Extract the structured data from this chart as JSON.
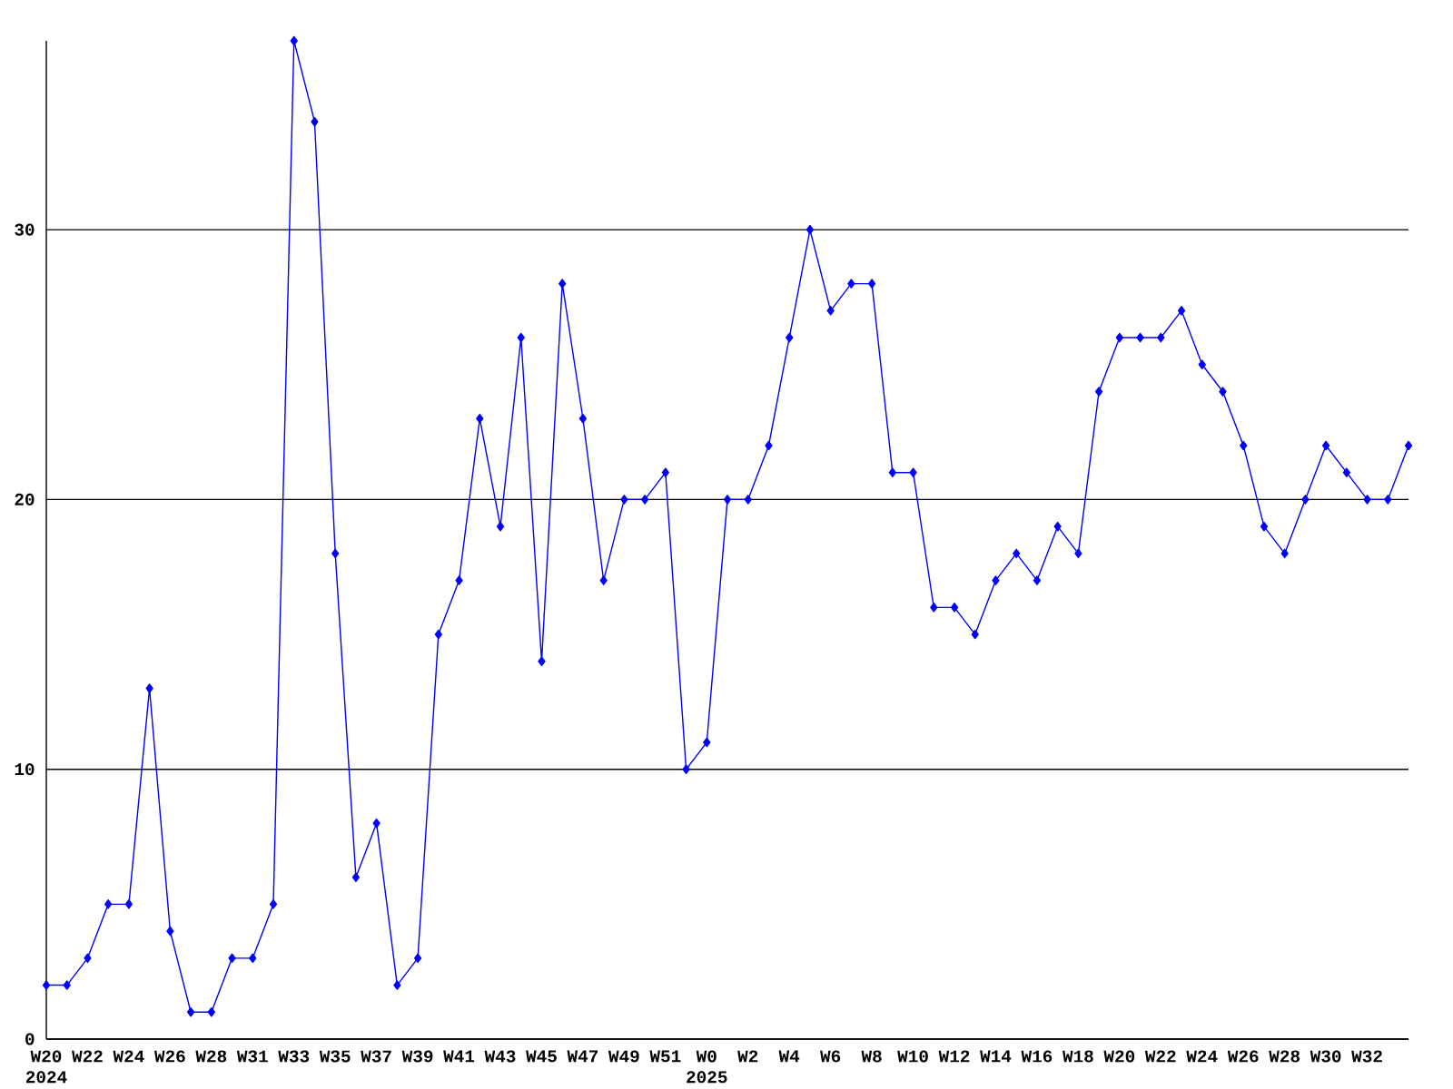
{
  "chart_data": {
    "type": "line",
    "categories": [
      "W20 2024",
      null,
      "W22",
      null,
      "W24",
      null,
      "W26",
      null,
      "W28",
      null,
      "W31",
      null,
      "W33",
      null,
      "W35",
      null,
      "W37",
      null,
      "W39",
      null,
      "W41",
      null,
      "W43",
      null,
      "W45",
      null,
      "W47",
      null,
      "W49",
      null,
      "W51",
      null,
      "W0 2025",
      null,
      "W2",
      null,
      "W4",
      null,
      "W6",
      null,
      "W8",
      null,
      "W10",
      null,
      "W12",
      null,
      "W14",
      null,
      "W16",
      null,
      "W18",
      null,
      "W20",
      null,
      "W22",
      null,
      "W24",
      null,
      "W26",
      null,
      "W28",
      null,
      "W30",
      null,
      "W32",
      null,
      null
    ],
    "values": [
      2,
      2,
      3,
      5,
      5,
      13,
      4,
      1,
      1,
      3,
      3,
      5,
      37,
      34,
      18,
      6,
      8,
      2,
      3,
      15,
      17,
      23,
      19,
      26,
      14,
      28,
      23,
      17,
      20,
      20,
      21,
      10,
      11,
      20,
      20,
      22,
      26,
      30,
      27,
      28,
      28,
      21,
      21,
      16,
      16,
      15,
      17,
      18,
      17,
      19,
      18,
      24,
      26,
      26,
      26,
      27,
      25,
      24,
      22,
      19,
      18,
      20,
      22,
      21,
      20,
      20,
      22
    ],
    "color": "#0000ff",
    "ylim": [
      0,
      37
    ],
    "yticks": [
      0,
      10,
      20,
      30
    ],
    "grid": "y",
    "marker": "diamond",
    "line_style": "solid"
  }
}
